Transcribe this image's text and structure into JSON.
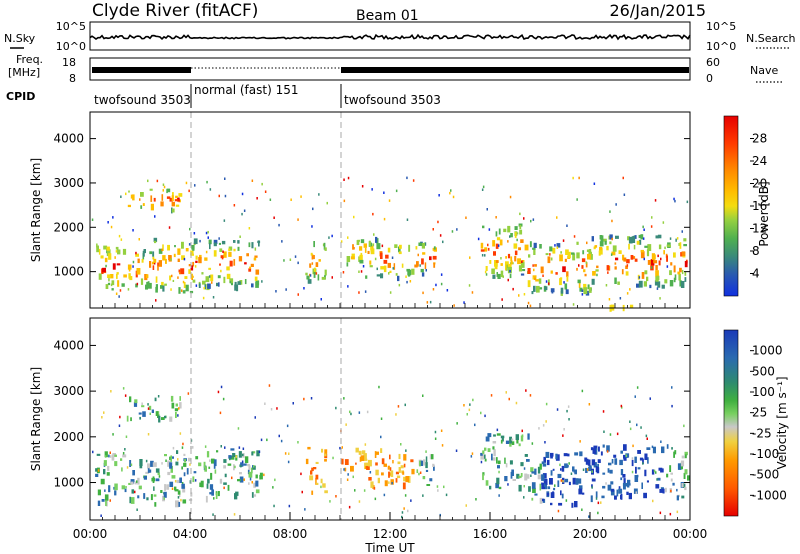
{
  "header": {
    "title": "Clyde River (fitACF)",
    "beam": "Beam 01",
    "date": "26/Jan/2015"
  },
  "panels": {
    "nsky_label": "N.Sky",
    "nsky_ticks": [
      "10^5",
      "10^0"
    ],
    "nsearch_label": "N.Search",
    "nsearch_ticks": [
      "10^5",
      "10^0"
    ],
    "freq_label": "Freq.",
    "freq_unit": "[MHz]",
    "freq_ticks": [
      "18",
      "8"
    ],
    "nave_label": "Nave",
    "nave_ticks": [
      "60",
      "0"
    ],
    "cpid_label": "CPID",
    "cpid_segments": [
      {
        "label": "twofsound 3503",
        "start": 0,
        "end": 4
      },
      {
        "label": "normal (fast) 151",
        "start": 4,
        "end": 10
      },
      {
        "label": "twofsound 3503",
        "start": 10,
        "end": 24
      }
    ]
  },
  "chart_data": [
    {
      "type": "heatmap",
      "name": "power",
      "ylabel": "Slant Range [km]",
      "yticks": [
        "4000",
        "3000",
        "2000",
        "1000"
      ],
      "ylim": [
        180,
        4600
      ],
      "xlim": [
        0,
        24
      ],
      "colorbar_label": "Power [dB]",
      "colorbar_ticks": [
        "28",
        "24",
        "20",
        "16",
        "12",
        "8",
        "4"
      ],
      "colorbar_colors": [
        "#e60000",
        "#ff3a00",
        "#ff8a00",
        "#ffbe00",
        "#f4dc10",
        "#94d040",
        "#50b050",
        "#3a8a7a",
        "#2a5ab0",
        "#1030e0"
      ],
      "blobs": [
        {
          "t0": 0.2,
          "t1": 1.3,
          "r0": 600,
          "r1": 1700
        },
        {
          "t0": 1.3,
          "t1": 2.5,
          "r0": 650,
          "r1": 1550
        },
        {
          "t0": 2.5,
          "t1": 4.2,
          "r0": 550,
          "r1": 1800
        },
        {
          "t0": 4.2,
          "t1": 6.8,
          "r0": 700,
          "r1": 1750
        },
        {
          "t0": 8.6,
          "t1": 9.4,
          "r0": 800,
          "r1": 1800
        },
        {
          "t0": 10.0,
          "t1": 11.0,
          "r0": 1200,
          "r1": 1800
        },
        {
          "t0": 11.0,
          "t1": 12.3,
          "r0": 900,
          "r1": 1800
        },
        {
          "t0": 12.3,
          "t1": 13.8,
          "r0": 950,
          "r1": 1700
        },
        {
          "t0": 15.6,
          "t1": 17.5,
          "r0": 900,
          "r1": 2100
        },
        {
          "t0": 17.5,
          "t1": 20.0,
          "r0": 550,
          "r1": 1700
        },
        {
          "t0": 20.0,
          "t1": 23.9,
          "r0": 700,
          "r1": 1850
        },
        {
          "t0": 1.4,
          "t1": 3.6,
          "r0": 2400,
          "r1": 2900
        },
        {
          "t0": 20.3,
          "t1": 21.6,
          "r0": 230,
          "r1": 350
        }
      ]
    },
    {
      "type": "heatmap",
      "name": "velocity",
      "ylabel": "Slant Range [km]",
      "yticks": [
        "4000",
        "3000",
        "2000",
        "1000"
      ],
      "ylim": [
        180,
        4600
      ],
      "xlim": [
        0,
        24
      ],
      "xticks": [
        "00:00",
        "04:00",
        "08:00",
        "12:00",
        "16:00",
        "20:00",
        "00:00"
      ],
      "xlabel": "Time UT",
      "colorbar_label": "Velocity [m s⁻¹]",
      "colorbar_ticks": [
        "1000",
        "500",
        "100",
        "25",
        "-25",
        "-100",
        "-500",
        "-1000"
      ],
      "colorbar_colors": [
        "#1a3ab8",
        "#2a6ab0",
        "#2e8a70",
        "#40b040",
        "#78d060",
        "#c8c8c8",
        "#f0d040",
        "#ff9a00",
        "#ff5a00",
        "#e60000"
      ],
      "blobs": [
        {
          "t0": 0.2,
          "t1": 1.3,
          "r0": 600,
          "r1": 1700
        },
        {
          "t0": 1.3,
          "t1": 2.5,
          "r0": 650,
          "r1": 1550
        },
        {
          "t0": 2.5,
          "t1": 4.2,
          "r0": 550,
          "r1": 1800
        },
        {
          "t0": 4.2,
          "t1": 6.8,
          "r0": 700,
          "r1": 1750
        },
        {
          "t0": 8.6,
          "t1": 9.4,
          "r0": 800,
          "r1": 1800
        },
        {
          "t0": 10.0,
          "t1": 11.0,
          "r0": 1200,
          "r1": 1800
        },
        {
          "t0": 11.0,
          "t1": 12.3,
          "r0": 900,
          "r1": 1800
        },
        {
          "t0": 12.3,
          "t1": 13.8,
          "r0": 950,
          "r1": 1700
        },
        {
          "t0": 15.6,
          "t1": 17.5,
          "r0": 900,
          "r1": 2100
        },
        {
          "t0": 17.5,
          "t1": 20.0,
          "r0": 550,
          "r1": 1700
        },
        {
          "t0": 20.0,
          "t1": 23.9,
          "r0": 700,
          "r1": 1850
        },
        {
          "t0": 1.4,
          "t1": 3.6,
          "r0": 2400,
          "r1": 2900
        }
      ]
    }
  ]
}
